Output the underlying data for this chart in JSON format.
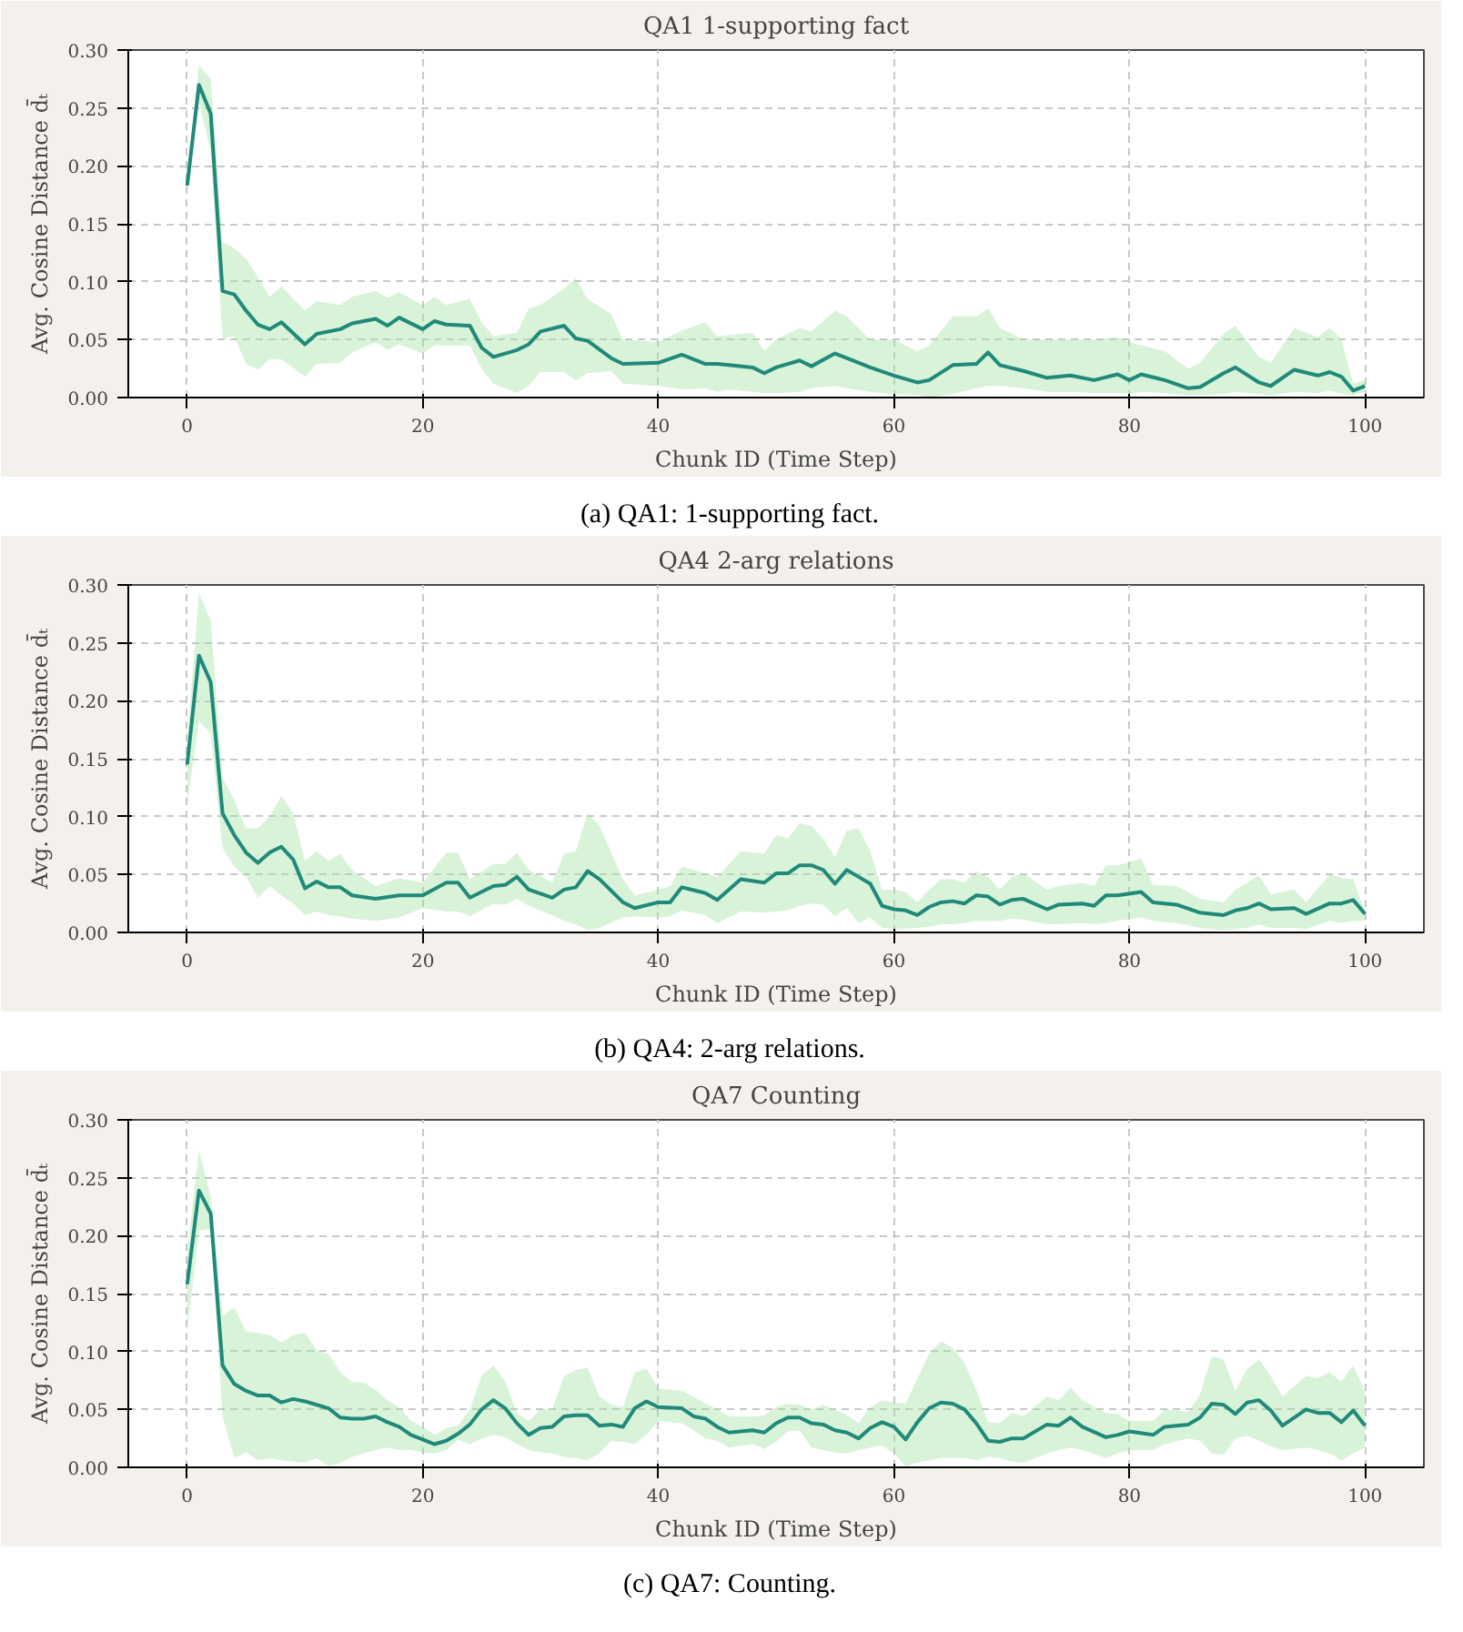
{
  "chart_data": [
    {
      "type": "line",
      "title": "QA1 1-supporting fact",
      "xlabel": "Chunk ID (Time Step)",
      "ylabel": "Avg. Cosine Distance d̄ₜ",
      "xlim": [
        -5,
        105
      ],
      "xticks": [
        0,
        20,
        40,
        60,
        80,
        100
      ],
      "ylim": [
        0,
        0.3
      ],
      "yticks": [
        {
          "value": 0,
          "label": "0.00"
        },
        {
          "value": 0.05,
          "label": "0.05"
        },
        {
          "value": 0.1,
          "label": "0.10"
        },
        {
          "value": 0.15,
          "label": "0.15"
        },
        {
          "value": 0.2,
          "label": "0.20"
        },
        {
          "value": 0.25,
          "label": "0.25"
        },
        {
          "value": 0.3,
          "label": "0.30"
        }
      ],
      "grid": true,
      "annotations": [
        "(a) QA1: 1-supporting fact."
      ],
      "series": [
        {
          "color": "#1f8a7a",
          "x": [
            0,
            1,
            2,
            3,
            4,
            5,
            6,
            7,
            8,
            10,
            11,
            13,
            14,
            16,
            17,
            18,
            20,
            21,
            22,
            24,
            25,
            26,
            28,
            29,
            30,
            32,
            33,
            34,
            36,
            37,
            40,
            42,
            44,
            45,
            46,
            48,
            49,
            50,
            52,
            53,
            55,
            56,
            58,
            60,
            62,
            63,
            65,
            67,
            68,
            69,
            71,
            73,
            75,
            77,
            79,
            80,
            81,
            83,
            85,
            86,
            88,
            89,
            91,
            92,
            94,
            96,
            97,
            98,
            99,
            100
          ],
          "values": [
            0.183,
            0.27,
            0.245,
            0.092,
            0.089,
            0.075,
            0.063,
            0.059,
            0.065,
            0.046,
            0.055,
            0.059,
            0.064,
            0.068,
            0.062,
            0.069,
            0.059,
            0.066,
            0.063,
            0.062,
            0.043,
            0.035,
            0.041,
            0.046,
            0.057,
            0.062,
            0.051,
            0.049,
            0.034,
            0.029,
            0.03,
            0.037,
            0.029,
            0.029,
            0.028,
            0.026,
            0.021,
            0.026,
            0.032,
            0.027,
            0.038,
            0.034,
            0.026,
            0.019,
            0.013,
            0.015,
            0.028,
            0.029,
            0.039,
            0.028,
            0.023,
            0.017,
            0.019,
            0.015,
            0.02,
            0.015,
            0.02,
            0.015,
            0.008,
            0.009,
            0.021,
            0.026,
            0.013,
            0.01,
            0.024,
            0.019,
            0.022,
            0.018,
            0.006,
            0.01
          ],
          "lower": [
            0.175,
            0.255,
            0.212,
            0.05,
            0.053,
            0.029,
            0.024,
            0.033,
            0.033,
            0.018,
            0.029,
            0.03,
            0.039,
            0.048,
            0.041,
            0.046,
            0.038,
            0.045,
            0.045,
            0.045,
            0.025,
            0.012,
            0.004,
            0.01,
            0.022,
            0.022,
            0.015,
            0.021,
            0.023,
            0.012,
            0.01,
            0.007,
            0.008,
            0.005,
            0.007,
            0.005,
            0.004,
            0.004,
            0.005,
            0.008,
            0.01,
            0.008,
            0.005,
            0.003,
            0.002,
            0.0,
            0.003,
            0.008,
            0.01,
            0.01,
            0.008,
            0.005,
            0.005,
            0.004,
            0.004,
            0.003,
            0.005,
            0.004,
            0.002,
            0.002,
            0.003,
            0.005,
            0.003,
            0.002,
            0.005,
            0.004,
            0.006,
            0.003,
            0.002,
            0.005
          ],
          "upper": [
            0.19,
            0.287,
            0.275,
            0.134,
            0.129,
            0.12,
            0.104,
            0.087,
            0.096,
            0.075,
            0.083,
            0.08,
            0.087,
            0.092,
            0.086,
            0.091,
            0.08,
            0.087,
            0.08,
            0.085,
            0.065,
            0.053,
            0.056,
            0.077,
            0.08,
            0.094,
            0.103,
            0.085,
            0.072,
            0.05,
            0.048,
            0.058,
            0.065,
            0.053,
            0.054,
            0.056,
            0.04,
            0.05,
            0.06,
            0.057,
            0.075,
            0.07,
            0.05,
            0.05,
            0.04,
            0.045,
            0.07,
            0.07,
            0.077,
            0.06,
            0.05,
            0.05,
            0.05,
            0.05,
            0.052,
            0.048,
            0.045,
            0.04,
            0.025,
            0.03,
            0.055,
            0.062,
            0.035,
            0.03,
            0.06,
            0.052,
            0.06,
            0.05,
            0.012,
            0.015
          ]
        }
      ]
    },
    {
      "type": "line",
      "title": "QA4 2-arg relations",
      "xlabel": "Chunk ID (Time Step)",
      "ylabel": "Avg. Cosine Distance d̄ₜ",
      "xlim": [
        -5,
        105
      ],
      "xticks": [
        0,
        20,
        40,
        60,
        80,
        100
      ],
      "ylim": [
        0,
        0.3
      ],
      "yticks": [
        {
          "value": 0,
          "label": "0.00"
        },
        {
          "value": 0.05,
          "label": "0.05"
        },
        {
          "value": 0.1,
          "label": "0.10"
        },
        {
          "value": 0.15,
          "label": "0.15"
        },
        {
          "value": 0.2,
          "label": "0.20"
        },
        {
          "value": 0.25,
          "label": "0.25"
        },
        {
          "value": 0.3,
          "label": "0.30"
        }
      ],
      "grid": true,
      "annotations": [
        "(b) QA4: 2-arg relations."
      ],
      "series": [
        {
          "color": "#1f8a7a",
          "x": [
            0,
            1,
            2,
            3,
            4,
            5,
            6,
            7,
            8,
            9,
            10,
            11,
            12,
            13,
            14,
            16,
            18,
            20,
            22,
            23,
            24,
            26,
            27,
            28,
            29,
            31,
            32,
            33,
            34,
            35,
            37,
            38,
            40,
            41,
            42,
            44,
            45,
            47,
            49,
            50,
            51,
            52,
            53,
            54,
            55,
            56,
            57,
            58,
            59,
            60,
            61,
            62,
            63,
            64,
            65,
            66,
            67,
            68,
            69,
            70,
            71,
            73,
            74,
            76,
            77,
            78,
            79,
            81,
            82,
            84,
            86,
            88,
            89,
            90,
            91,
            92,
            94,
            95,
            97,
            98,
            99,
            100
          ],
          "values": [
            0.145,
            0.239,
            0.216,
            0.103,
            0.084,
            0.069,
            0.06,
            0.069,
            0.074,
            0.063,
            0.038,
            0.044,
            0.039,
            0.039,
            0.032,
            0.029,
            0.032,
            0.032,
            0.043,
            0.043,
            0.03,
            0.04,
            0.041,
            0.048,
            0.037,
            0.03,
            0.037,
            0.039,
            0.053,
            0.046,
            0.026,
            0.021,
            0.026,
            0.026,
            0.039,
            0.034,
            0.028,
            0.046,
            0.043,
            0.051,
            0.051,
            0.058,
            0.058,
            0.054,
            0.042,
            0.054,
            0.048,
            0.042,
            0.023,
            0.02,
            0.019,
            0.015,
            0.022,
            0.026,
            0.027,
            0.025,
            0.032,
            0.031,
            0.024,
            0.028,
            0.029,
            0.02,
            0.024,
            0.025,
            0.023,
            0.032,
            0.032,
            0.035,
            0.026,
            0.024,
            0.017,
            0.015,
            0.019,
            0.021,
            0.025,
            0.02,
            0.021,
            0.016,
            0.025,
            0.025,
            0.028,
            0.016
          ],
          "lower": [
            0.11,
            0.182,
            0.172,
            0.073,
            0.057,
            0.048,
            0.03,
            0.04,
            0.032,
            0.025,
            0.015,
            0.018,
            0.015,
            0.014,
            0.012,
            0.01,
            0.013,
            0.021,
            0.018,
            0.018,
            0.014,
            0.025,
            0.024,
            0.029,
            0.023,
            0.015,
            0.01,
            0.007,
            0.002,
            0.004,
            0.013,
            0.014,
            0.013,
            0.014,
            0.019,
            0.015,
            0.008,
            0.018,
            0.017,
            0.018,
            0.019,
            0.023,
            0.025,
            0.024,
            0.014,
            0.021,
            0.008,
            0.013,
            0.004,
            0.003,
            0.003,
            0.004,
            0.005,
            0.007,
            0.007,
            0.008,
            0.01,
            0.01,
            0.01,
            0.012,
            0.011,
            0.007,
            0.007,
            0.008,
            0.007,
            0.008,
            0.01,
            0.013,
            0.01,
            0.008,
            0.004,
            0.002,
            0.003,
            0.004,
            0.007,
            0.004,
            0.004,
            0.003,
            0.01,
            0.008,
            0.01,
            0.01
          ],
          "upper": [
            0.165,
            0.293,
            0.269,
            0.134,
            0.114,
            0.09,
            0.09,
            0.1,
            0.118,
            0.103,
            0.062,
            0.07,
            0.062,
            0.068,
            0.054,
            0.04,
            0.047,
            0.043,
            0.069,
            0.069,
            0.046,
            0.059,
            0.059,
            0.069,
            0.054,
            0.043,
            0.068,
            0.07,
            0.103,
            0.092,
            0.046,
            0.032,
            0.037,
            0.04,
            0.057,
            0.051,
            0.048,
            0.07,
            0.068,
            0.084,
            0.081,
            0.094,
            0.092,
            0.081,
            0.065,
            0.088,
            0.09,
            0.07,
            0.037,
            0.037,
            0.035,
            0.026,
            0.037,
            0.046,
            0.046,
            0.043,
            0.053,
            0.048,
            0.037,
            0.048,
            0.051,
            0.037,
            0.04,
            0.043,
            0.04,
            0.058,
            0.058,
            0.064,
            0.041,
            0.04,
            0.029,
            0.026,
            0.037,
            0.043,
            0.049,
            0.033,
            0.037,
            0.026,
            0.05,
            0.047,
            0.046,
            0.018
          ]
        }
      ]
    },
    {
      "type": "line",
      "title": "QA7 Counting",
      "xlabel": "Chunk ID (Time Step)",
      "ylabel": "Avg. Cosine Distance d̄ₜ",
      "xlim": [
        -5,
        105
      ],
      "xticks": [
        0,
        20,
        40,
        60,
        80,
        100
      ],
      "ylim": [
        0,
        0.3
      ],
      "yticks": [
        {
          "value": 0,
          "label": "0.00"
        },
        {
          "value": 0.05,
          "label": "0.05"
        },
        {
          "value": 0.1,
          "label": "0.10"
        },
        {
          "value": 0.15,
          "label": "0.15"
        },
        {
          "value": 0.2,
          "label": "0.20"
        },
        {
          "value": 0.25,
          "label": "0.25"
        },
        {
          "value": 0.3,
          "label": "0.30"
        }
      ],
      "grid": true,
      "annotations": [
        "(c) QA7: Counting."
      ],
      "series": [
        {
          "color": "#1f8a7a",
          "x": [
            0,
            1,
            2,
            3,
            4,
            5,
            6,
            7,
            8,
            9,
            10,
            11,
            12,
            13,
            14,
            15,
            16,
            17,
            18,
            19,
            20,
            21,
            22,
            23,
            24,
            25,
            26,
            27,
            28,
            29,
            30,
            31,
            32,
            33,
            34,
            35,
            36,
            37,
            38,
            39,
            40,
            42,
            43,
            44,
            45,
            46,
            48,
            49,
            50,
            51,
            52,
            53,
            54,
            55,
            56,
            57,
            58,
            59,
            60,
            61,
            62,
            63,
            64,
            65,
            66,
            67,
            68,
            69,
            70,
            71,
            73,
            74,
            75,
            76,
            78,
            79,
            80,
            82,
            83,
            85,
            86,
            87,
            88,
            89,
            90,
            91,
            92,
            93,
            95,
            96,
            97,
            98,
            99,
            100
          ],
          "values": [
            0.158,
            0.239,
            0.219,
            0.088,
            0.072,
            0.066,
            0.062,
            0.062,
            0.056,
            0.059,
            0.057,
            0.054,
            0.051,
            0.043,
            0.042,
            0.042,
            0.044,
            0.039,
            0.035,
            0.028,
            0.024,
            0.02,
            0.023,
            0.029,
            0.037,
            0.05,
            0.058,
            0.051,
            0.038,
            0.028,
            0.034,
            0.035,
            0.044,
            0.045,
            0.045,
            0.036,
            0.037,
            0.035,
            0.051,
            0.057,
            0.052,
            0.051,
            0.044,
            0.042,
            0.035,
            0.03,
            0.032,
            0.03,
            0.038,
            0.043,
            0.043,
            0.038,
            0.037,
            0.032,
            0.03,
            0.025,
            0.034,
            0.039,
            0.035,
            0.024,
            0.039,
            0.051,
            0.056,
            0.055,
            0.05,
            0.038,
            0.023,
            0.022,
            0.025,
            0.025,
            0.037,
            0.036,
            0.043,
            0.035,
            0.026,
            0.028,
            0.031,
            0.028,
            0.035,
            0.037,
            0.043,
            0.055,
            0.054,
            0.046,
            0.056,
            0.058,
            0.049,
            0.036,
            0.05,
            0.047,
            0.047,
            0.039,
            0.049,
            0.036
          ],
          "lower": [
            0.117,
            0.204,
            0.206,
            0.044,
            0.008,
            0.013,
            0.006,
            0.008,
            0.006,
            0.005,
            0.004,
            0.008,
            0.001,
            0.004,
            0.009,
            0.012,
            0.015,
            0.017,
            0.015,
            0.015,
            0.013,
            0.012,
            0.015,
            0.024,
            0.02,
            0.025,
            0.028,
            0.026,
            0.02,
            0.015,
            0.013,
            0.012,
            0.009,
            0.008,
            0.006,
            0.012,
            0.023,
            0.022,
            0.02,
            0.028,
            0.04,
            0.038,
            0.032,
            0.025,
            0.023,
            0.017,
            0.02,
            0.016,
            0.022,
            0.031,
            0.032,
            0.017,
            0.015,
            0.013,
            0.012,
            0.015,
            0.017,
            0.019,
            0.012,
            0.001,
            0.004,
            0.006,
            0.008,
            0.008,
            0.008,
            0.006,
            0.009,
            0.008,
            0.005,
            0.004,
            0.012,
            0.015,
            0.017,
            0.015,
            0.008,
            0.012,
            0.015,
            0.015,
            0.02,
            0.025,
            0.023,
            0.012,
            0.011,
            0.025,
            0.027,
            0.023,
            0.018,
            0.015,
            0.017,
            0.015,
            0.012,
            0.006,
            0.012,
            0.017
          ],
          "upper": [
            0.185,
            0.274,
            0.234,
            0.131,
            0.138,
            0.117,
            0.116,
            0.114,
            0.108,
            0.114,
            0.116,
            0.101,
            0.098,
            0.082,
            0.074,
            0.073,
            0.067,
            0.058,
            0.052,
            0.04,
            0.035,
            0.028,
            0.034,
            0.036,
            0.05,
            0.079,
            0.088,
            0.074,
            0.047,
            0.04,
            0.05,
            0.05,
            0.079,
            0.084,
            0.086,
            0.061,
            0.054,
            0.052,
            0.082,
            0.085,
            0.068,
            0.066,
            0.061,
            0.055,
            0.05,
            0.044,
            0.044,
            0.045,
            0.052,
            0.055,
            0.054,
            0.05,
            0.054,
            0.05,
            0.045,
            0.038,
            0.052,
            0.058,
            0.056,
            0.055,
            0.077,
            0.098,
            0.109,
            0.103,
            0.09,
            0.067,
            0.039,
            0.038,
            0.047,
            0.044,
            0.061,
            0.058,
            0.069,
            0.058,
            0.047,
            0.046,
            0.04,
            0.04,
            0.05,
            0.048,
            0.063,
            0.096,
            0.093,
            0.066,
            0.085,
            0.093,
            0.079,
            0.061,
            0.079,
            0.077,
            0.082,
            0.074,
            0.088,
            0.066
          ]
        }
      ]
    }
  ]
}
